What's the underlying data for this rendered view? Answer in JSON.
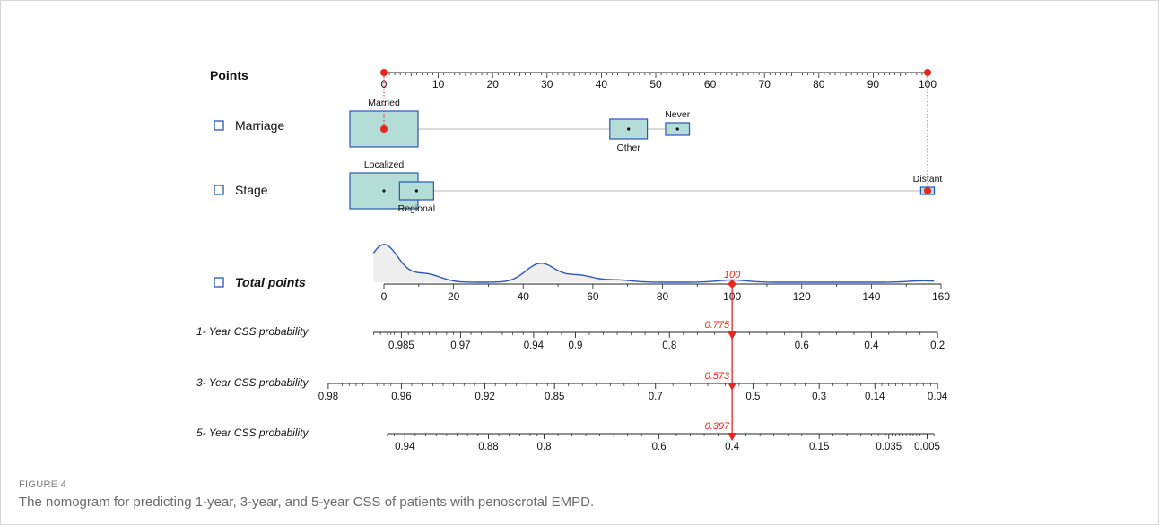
{
  "figure": {
    "label": "FIGURE 4",
    "caption": "The nomogram for predicting 1-year, 3-year, and 5-year CSS of patients with penoscrotal EMPD."
  },
  "colors": {
    "box_fill": "#b3ddd6",
    "box_stroke": "#2a58b5",
    "highlight": "#e8251f",
    "axis": "#222222",
    "density_fill": "#eeeeee",
    "density_line": "#2a58b5",
    "connector": "#c8c8c8"
  },
  "chart_data": {
    "type": "nomogram",
    "points_axis": {
      "label": "Points",
      "range": [
        0,
        100
      ],
      "ticks": [
        0,
        10,
        20,
        30,
        40,
        50,
        60,
        70,
        80,
        90,
        100
      ],
      "selected_points": [
        0,
        100
      ]
    },
    "variables": [
      {
        "name": "Marriage",
        "levels": [
          {
            "label": "Married",
            "points": 0,
            "weight": 1.0,
            "label_position": "above"
          },
          {
            "label": "Other",
            "points": 45,
            "weight": 0.55,
            "label_position": "below"
          },
          {
            "label": "Never",
            "points": 54,
            "weight": 0.35,
            "label_position": "above"
          }
        ],
        "selected": "Married"
      },
      {
        "name": "Stage",
        "levels": [
          {
            "label": "Localized",
            "points": 0,
            "weight": 1.0,
            "label_position": "above"
          },
          {
            "label": "Regional",
            "points": 6,
            "weight": 0.5,
            "label_position": "below"
          },
          {
            "label": "Distant",
            "points": 100,
            "weight": 0.2,
            "label_position": "above"
          }
        ],
        "selected": "Distant"
      }
    ],
    "total_points_axis": {
      "label": "Total points",
      "range": [
        0,
        160
      ],
      "ticks": [
        0,
        20,
        40,
        60,
        80,
        100,
        120,
        140,
        160
      ],
      "selected_value": "100",
      "density_peaks": [
        {
          "x": 0,
          "height": 1.0
        },
        {
          "x": 12,
          "height": 0.22
        },
        {
          "x": 45,
          "height": 0.5
        },
        {
          "x": 56,
          "height": 0.18
        },
        {
          "x": 67,
          "height": 0.06
        },
        {
          "x": 100,
          "height": 0.06
        },
        {
          "x": 155,
          "height": 0.04
        }
      ]
    },
    "probability_axes": [
      {
        "label": "1- Year CSS probability",
        "selected_value": "0.775",
        "ticks": [
          {
            "label": "0.985",
            "total_points": 5
          },
          {
            "label": "0.97",
            "total_points": 22
          },
          {
            "label": "0.94",
            "total_points": 43
          },
          {
            "label": "0.9",
            "total_points": 55
          },
          {
            "label": "0.8",
            "total_points": 82
          },
          {
            "label": "0.6",
            "total_points": 120
          },
          {
            "label": "0.4",
            "total_points": 140
          },
          {
            "label": "0.2",
            "total_points": 159
          }
        ],
        "minor_ticks": [
          -3,
          -1,
          1,
          2,
          3,
          7,
          9,
          11,
          13,
          15,
          18,
          20,
          25,
          28,
          31,
          34,
          37,
          40,
          47,
          51,
          59,
          63,
          67,
          71,
          75,
          79,
          86,
          90,
          95,
          100,
          105,
          110,
          115,
          125,
          130,
          135,
          145,
          150,
          154
        ]
      },
      {
        "label": "3- Year CSS probability",
        "selected_value": "0.573",
        "ticks": [
          {
            "label": "0.98",
            "total_points": -16
          },
          {
            "label": "0.96",
            "total_points": 5
          },
          {
            "label": "0.92",
            "total_points": 29
          },
          {
            "label": "0.85",
            "total_points": 49
          },
          {
            "label": "0.7",
            "total_points": 78
          },
          {
            "label": "0.5",
            "total_points": 106
          },
          {
            "label": "0.3",
            "total_points": 125
          },
          {
            "label": "0.14",
            "total_points": 141
          },
          {
            "label": "0.04",
            "total_points": 159
          }
        ],
        "minor_ticks": [
          -14,
          -12,
          -10,
          -8,
          -6,
          -4,
          -2,
          0,
          2,
          8,
          11,
          14,
          17,
          20,
          23,
          26,
          32,
          35,
          38,
          41,
          44,
          47,
          53,
          57,
          61,
          65,
          69,
          73,
          83,
          88,
          93,
          98,
          102,
          110,
          114,
          118,
          121,
          129,
          133,
          137,
          143,
          145,
          147,
          149,
          151,
          153,
          155,
          157
        ]
      },
      {
        "label": "5- Year CSS probability",
        "selected_value": "0.397",
        "ticks": [
          {
            "label": "0.94",
            "total_points": 6
          },
          {
            "label": "0.88",
            "total_points": 30
          },
          {
            "label": "0.8",
            "total_points": 46
          },
          {
            "label": "0.6",
            "total_points": 79
          },
          {
            "label": "0.4",
            "total_points": 100
          },
          {
            "label": "0.15",
            "total_points": 125
          },
          {
            "label": "0.035",
            "total_points": 145
          },
          {
            "label": "0.005",
            "total_points": 156
          }
        ],
        "minor_ticks": [
          1,
          3,
          9,
          12,
          15,
          18,
          21,
          24,
          27,
          33,
          36,
          39,
          42,
          44,
          50,
          54,
          58,
          62,
          66,
          70,
          74,
          84,
          88,
          92,
          96,
          104,
          108,
          112,
          116,
          120,
          129,
          133,
          137,
          140,
          142,
          144,
          146,
          147,
          148,
          149,
          150,
          151,
          152,
          153,
          154,
          158
        ]
      }
    ]
  }
}
